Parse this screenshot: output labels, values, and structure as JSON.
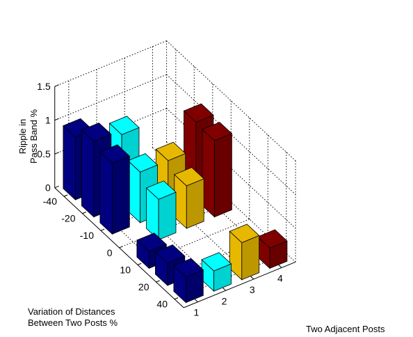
{
  "chart_data": {
    "type": "bar",
    "subtype": "3d-bar",
    "title": "",
    "zlabel_lines": [
      "Ripple in",
      "Pass Band %"
    ],
    "xlabel_lines": [
      "Variation of Distances",
      "Between Two Posts %"
    ],
    "ylabel": "Two Adjacent Posts",
    "zlim": [
      0,
      1.5
    ],
    "z_ticks": [
      "0",
      "0.5",
      "1",
      "1.5"
    ],
    "x_ticks": [
      "-40",
      "-20",
      "-10",
      "0",
      "10",
      "20",
      "40"
    ],
    "y_ticks": [
      "1",
      "2",
      "3",
      "4"
    ],
    "grid": true,
    "series": [
      {
        "post": 1,
        "color": "#000080",
        "values": [
          0.93,
          1.12,
          1.05,
          0.0,
          0.25,
          0.33,
          0.38
        ]
      },
      {
        "post": 2,
        "color": "#00FFFF",
        "values": [
          0.0,
          1.05,
          0.75,
          0.6,
          0.0,
          0.0,
          0.3
        ]
      },
      {
        "post": 3,
        "color": "#E6B800",
        "values": [
          0.0,
          0.0,
          0.75,
          0.63,
          0.0,
          0.0,
          0.55
        ]
      },
      {
        "post": 4,
        "color": "#800000",
        "values": [
          0.0,
          0.0,
          1.15,
          1.13,
          0.0,
          0.0,
          0.3
        ]
      }
    ]
  }
}
